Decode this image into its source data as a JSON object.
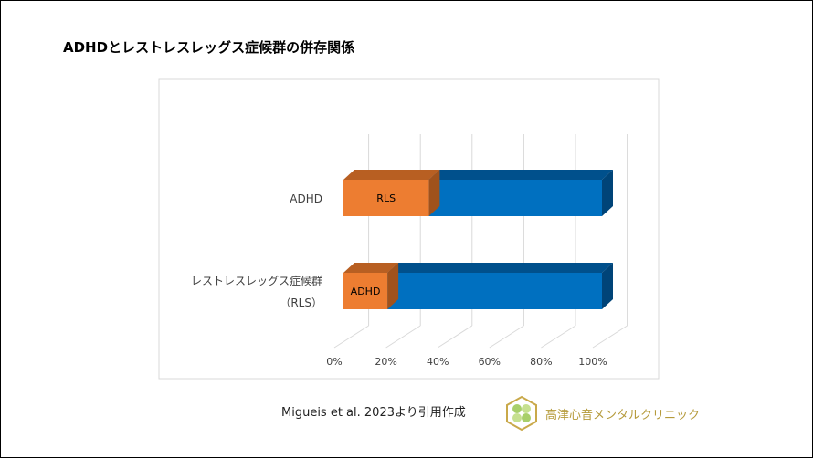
{
  "title": "ADHDとレストレスレッグス症候群の併存関係",
  "chart_data": {
    "type": "bar",
    "orientation": "horizontal",
    "stacked": "100%",
    "style": "3d",
    "categories": [
      "ADHD",
      "レストレスレッグス症候群",
      "（RLS）"
    ],
    "rows": [
      {
        "label": [
          "ADHD"
        ],
        "comorbid_label": "RLS",
        "comorbid_pct": 33,
        "other_pct": 67
      },
      {
        "label": [
          "レストレスレッグス症候群",
          "（RLS）"
        ],
        "comorbid_label": "ADHD",
        "comorbid_pct": 17,
        "other_pct": 83
      }
    ],
    "x_ticks": [
      "0%",
      "20%",
      "40%",
      "60%",
      "80%",
      "100%"
    ],
    "xlim": [
      0,
      100
    ],
    "grid": true,
    "colors": {
      "comorbid": "#ed7d31",
      "other": "#0070c0"
    }
  },
  "source": "Migueis et al. 2023より引用作成",
  "clinic_name": "高津心音メンタルクリニック"
}
